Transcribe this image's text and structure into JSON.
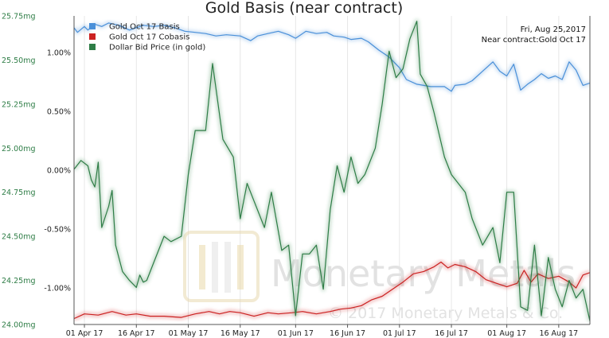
{
  "chart_data": {
    "type": "line",
    "title": "Gold Basis (near contract)",
    "info": {
      "date": "Fri, Aug 25,2017",
      "contract": "Near contract:Gold Oct 17"
    },
    "watermark": {
      "brand": "Monetary Metals",
      "copyright": "© 2017 Monetary Metals & Co."
    },
    "left_axis": {
      "range": [
        24.0,
        25.75
      ],
      "ticks": [
        {
          "value": 25.75,
          "label": "25.75mg"
        },
        {
          "value": 25.5,
          "label": "25.50mg"
        },
        {
          "value": 25.25,
          "label": "25.25mg"
        },
        {
          "value": 25.0,
          "label": "25.00mg"
        },
        {
          "value": 24.75,
          "label": "24.75mg"
        },
        {
          "value": 24.5,
          "label": "24.50mg"
        },
        {
          "value": 24.25,
          "label": "24.25mg"
        },
        {
          "value": 24.0,
          "label": "24.00mg"
        }
      ]
    },
    "right_axis": {
      "range": [
        -1.31,
        1.31
      ],
      "ticks": [
        {
          "value": 1.0,
          "label": "1.00%"
        },
        {
          "value": 0.5,
          "label": "0.50%"
        },
        {
          "value": 0.0,
          "label": "0.00%"
        },
        {
          "value": -0.5,
          "label": "-0.50%"
        },
        {
          "value": -1.0,
          "label": "-1.00%"
        }
      ]
    },
    "x_axis": {
      "range": [
        "2017-03-29",
        "2017-08-25"
      ],
      "ticks": [
        {
          "date": "2017-04-01",
          "label": "01 Apr 17"
        },
        {
          "date": "2017-04-16",
          "label": "16 Apr 17"
        },
        {
          "date": "2017-05-01",
          "label": "01 May 17"
        },
        {
          "date": "2017-05-16",
          "label": "16 May 17"
        },
        {
          "date": "2017-06-01",
          "label": "01 Jun 17"
        },
        {
          "date": "2017-06-16",
          "label": "16 Jun 17"
        },
        {
          "date": "2017-07-01",
          "label": "01 Jul 17"
        },
        {
          "date": "2017-07-16",
          "label": "16 Jul 17"
        },
        {
          "date": "2017-08-01",
          "label": "01 Aug 17"
        },
        {
          "date": "2017-08-16",
          "label": "16 Aug 17"
        }
      ]
    },
    "grid": "vertical",
    "legend_position": "top-left",
    "series": [
      {
        "name": "Gold Oct 17 Basis",
        "axis": "right",
        "color": "#4a90d9",
        "points": [
          [
            "2017-03-29",
            1.21
          ],
          [
            "2017-03-30",
            1.17
          ],
          [
            "2017-04-01",
            1.22
          ],
          [
            "2017-04-02",
            1.19
          ],
          [
            "2017-04-04",
            1.24
          ],
          [
            "2017-04-06",
            1.22
          ],
          [
            "2017-04-08",
            1.25
          ],
          [
            "2017-04-11",
            1.23
          ],
          [
            "2017-04-14",
            1.19
          ],
          [
            "2017-04-16",
            1.21
          ],
          [
            "2017-04-18",
            1.23
          ],
          [
            "2017-04-21",
            1.22
          ],
          [
            "2017-04-24",
            1.23
          ],
          [
            "2017-04-27",
            1.21
          ],
          [
            "2017-04-30",
            1.18
          ],
          [
            "2017-05-03",
            1.17
          ],
          [
            "2017-05-06",
            1.16
          ],
          [
            "2017-05-09",
            1.14
          ],
          [
            "2017-05-12",
            1.15
          ],
          [
            "2017-05-16",
            1.14
          ],
          [
            "2017-05-19",
            1.1
          ],
          [
            "2017-05-21",
            1.14
          ],
          [
            "2017-05-24",
            1.16
          ],
          [
            "2017-05-27",
            1.18
          ],
          [
            "2017-05-30",
            1.15
          ],
          [
            "2017-06-01",
            1.12
          ],
          [
            "2017-06-04",
            1.18
          ],
          [
            "2017-06-07",
            1.16
          ],
          [
            "2017-06-10",
            1.17
          ],
          [
            "2017-06-12",
            1.14
          ],
          [
            "2017-06-15",
            1.13
          ],
          [
            "2017-06-17",
            1.11
          ],
          [
            "2017-06-20",
            1.12
          ],
          [
            "2017-06-22",
            1.09
          ],
          [
            "2017-06-25",
            1.02
          ],
          [
            "2017-06-28",
            0.96
          ],
          [
            "2017-07-01",
            0.87
          ],
          [
            "2017-07-03",
            0.77
          ],
          [
            "2017-07-06",
            0.73
          ],
          [
            "2017-07-10",
            0.71
          ],
          [
            "2017-07-14",
            0.71
          ],
          [
            "2017-07-16",
            0.67
          ],
          [
            "2017-07-17",
            0.72
          ],
          [
            "2017-07-20",
            0.73
          ],
          [
            "2017-07-22",
            0.76
          ],
          [
            "2017-07-25",
            0.84
          ],
          [
            "2017-07-28",
            0.92
          ],
          [
            "2017-07-30",
            0.84
          ],
          [
            "2017-08-01",
            0.8
          ],
          [
            "2017-08-03",
            0.9
          ],
          [
            "2017-08-05",
            0.68
          ],
          [
            "2017-08-07",
            0.73
          ],
          [
            "2017-08-09",
            0.77
          ],
          [
            "2017-08-11",
            0.82
          ],
          [
            "2017-08-13",
            0.78
          ],
          [
            "2017-08-15",
            0.8
          ],
          [
            "2017-08-17",
            0.77
          ],
          [
            "2017-08-19",
            0.92
          ],
          [
            "2017-08-21",
            0.85
          ],
          [
            "2017-08-23",
            0.72
          ],
          [
            "2017-08-25",
            0.74
          ]
        ]
      },
      {
        "name": "Gold Oct 17 Cobasis",
        "axis": "right",
        "color": "#cc2222",
        "points": [
          [
            "2017-03-29",
            -1.26
          ],
          [
            "2017-04-01",
            -1.22
          ],
          [
            "2017-04-05",
            -1.23
          ],
          [
            "2017-04-09",
            -1.2
          ],
          [
            "2017-04-13",
            -1.23
          ],
          [
            "2017-04-16",
            -1.22
          ],
          [
            "2017-04-20",
            -1.24
          ],
          [
            "2017-04-24",
            -1.24
          ],
          [
            "2017-04-29",
            -1.25
          ],
          [
            "2017-05-03",
            -1.22
          ],
          [
            "2017-05-07",
            -1.2
          ],
          [
            "2017-05-10",
            -1.22
          ],
          [
            "2017-05-13",
            -1.2
          ],
          [
            "2017-05-16",
            -1.21
          ],
          [
            "2017-05-20",
            -1.24
          ],
          [
            "2017-05-24",
            -1.21
          ],
          [
            "2017-05-27",
            -1.22
          ],
          [
            "2017-05-31",
            -1.21
          ],
          [
            "2017-06-03",
            -1.2
          ],
          [
            "2017-06-07",
            -1.22
          ],
          [
            "2017-06-11",
            -1.2
          ],
          [
            "2017-06-14",
            -1.18
          ],
          [
            "2017-06-17",
            -1.17
          ],
          [
            "2017-06-20",
            -1.15
          ],
          [
            "2017-06-23",
            -1.1
          ],
          [
            "2017-06-26",
            -1.07
          ],
          [
            "2017-06-29",
            -1.01
          ],
          [
            "2017-07-02",
            -0.95
          ],
          [
            "2017-07-05",
            -0.88
          ],
          [
            "2017-07-08",
            -0.86
          ],
          [
            "2017-07-11",
            -0.82
          ],
          [
            "2017-07-13",
            -0.78
          ],
          [
            "2017-07-15",
            -0.83
          ],
          [
            "2017-07-17",
            -0.8
          ],
          [
            "2017-07-20",
            -0.82
          ],
          [
            "2017-07-23",
            -0.86
          ],
          [
            "2017-07-26",
            -0.93
          ],
          [
            "2017-07-29",
            -0.96
          ],
          [
            "2017-08-01",
            -0.99
          ],
          [
            "2017-08-04",
            -0.96
          ],
          [
            "2017-08-06",
            -0.85
          ],
          [
            "2017-08-08",
            -0.95
          ],
          [
            "2017-08-10",
            -0.88
          ],
          [
            "2017-08-13",
            -0.92
          ],
          [
            "2017-08-16",
            -0.9
          ],
          [
            "2017-08-19",
            -0.95
          ],
          [
            "2017-08-21",
            -1.0
          ],
          [
            "2017-08-23",
            -0.89
          ],
          [
            "2017-08-25",
            -0.87
          ]
        ]
      },
      {
        "name": "Dollar Bid Price (in gold)",
        "axis": "left",
        "color": "#2e7d46",
        "points": [
          [
            "2017-03-29",
            24.88
          ],
          [
            "2017-03-31",
            24.93
          ],
          [
            "2017-04-02",
            24.9
          ],
          [
            "2017-04-03",
            24.82
          ],
          [
            "2017-04-04",
            24.78
          ],
          [
            "2017-04-05",
            24.92
          ],
          [
            "2017-04-06",
            24.55
          ],
          [
            "2017-04-08",
            24.67
          ],
          [
            "2017-04-09",
            24.76
          ],
          [
            "2017-04-10",
            24.45
          ],
          [
            "2017-04-12",
            24.3
          ],
          [
            "2017-04-14",
            24.25
          ],
          [
            "2017-04-16",
            24.21
          ],
          [
            "2017-04-17",
            24.28
          ],
          [
            "2017-04-18",
            24.24
          ],
          [
            "2017-04-19",
            24.25
          ],
          [
            "2017-04-21",
            24.35
          ],
          [
            "2017-04-24",
            24.5
          ],
          [
            "2017-04-26",
            24.47
          ],
          [
            "2017-04-29",
            24.5
          ],
          [
            "2017-05-01",
            24.85
          ],
          [
            "2017-05-03",
            25.1
          ],
          [
            "2017-05-04",
            25.1
          ],
          [
            "2017-05-06",
            25.1
          ],
          [
            "2017-05-08",
            25.48
          ],
          [
            "2017-05-11",
            25.05
          ],
          [
            "2017-05-14",
            24.95
          ],
          [
            "2017-05-16",
            24.6
          ],
          [
            "2017-05-18",
            24.8
          ],
          [
            "2017-05-20",
            24.7
          ],
          [
            "2017-05-23",
            24.55
          ],
          [
            "2017-05-25",
            24.75
          ],
          [
            "2017-05-28",
            24.42
          ],
          [
            "2017-05-30",
            24.45
          ],
          [
            "2017-06-01",
            24.05
          ],
          [
            "2017-06-03",
            24.4
          ],
          [
            "2017-06-05",
            24.4
          ],
          [
            "2017-06-07",
            24.45
          ],
          [
            "2017-06-09",
            24.2
          ],
          [
            "2017-06-11",
            24.65
          ],
          [
            "2017-06-13",
            24.9
          ],
          [
            "2017-06-15",
            24.75
          ],
          [
            "2017-06-17",
            24.95
          ],
          [
            "2017-06-19",
            24.8
          ],
          [
            "2017-06-21",
            24.85
          ],
          [
            "2017-06-24",
            25.0
          ],
          [
            "2017-06-26",
            25.25
          ],
          [
            "2017-06-28",
            25.55
          ],
          [
            "2017-06-30",
            25.4
          ],
          [
            "2017-07-02",
            25.45
          ],
          [
            "2017-07-04",
            25.62
          ],
          [
            "2017-07-06",
            25.72
          ],
          [
            "2017-07-07",
            25.42
          ],
          [
            "2017-07-09",
            25.35
          ],
          [
            "2017-07-11",
            25.2
          ],
          [
            "2017-07-14",
            24.95
          ],
          [
            "2017-07-16",
            24.85
          ],
          [
            "2017-07-18",
            24.8
          ],
          [
            "2017-07-20",
            24.75
          ],
          [
            "2017-07-22",
            24.6
          ],
          [
            "2017-07-25",
            24.45
          ],
          [
            "2017-07-28",
            24.55
          ],
          [
            "2017-07-30",
            24.35
          ],
          [
            "2017-08-01",
            24.75
          ],
          [
            "2017-08-03",
            24.75
          ],
          [
            "2017-08-05",
            24.1
          ],
          [
            "2017-08-07",
            24.08
          ],
          [
            "2017-08-09",
            24.45
          ],
          [
            "2017-08-11",
            24.05
          ],
          [
            "2017-08-13",
            24.38
          ],
          [
            "2017-08-15",
            24.2
          ],
          [
            "2017-08-17",
            24.1
          ],
          [
            "2017-08-19",
            24.25
          ],
          [
            "2017-08-21",
            24.15
          ],
          [
            "2017-08-23",
            24.2
          ],
          [
            "2017-08-25",
            24.02
          ]
        ]
      }
    ]
  }
}
